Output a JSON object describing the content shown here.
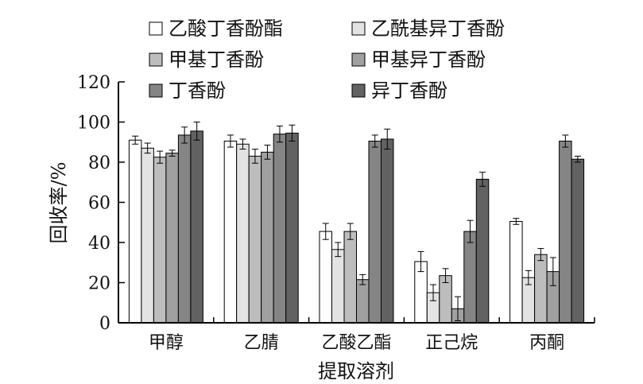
{
  "chart_data": {
    "type": "bar",
    "xlabel": "提取溶剂",
    "ylabel": "回收率/%",
    "ylim": [
      0,
      120
    ],
    "yticks": [
      0,
      20,
      40,
      60,
      80,
      100,
      120
    ],
    "categories": [
      "甲醇",
      "乙腈",
      "乙酸乙酯",
      "正己烷",
      "丙酮"
    ],
    "legend_placement": "top",
    "series": [
      {
        "name": "乙酸丁香酚酯",
        "color": "#ffffff",
        "values": [
          91,
          90.5,
          45.5,
          30.5,
          50.5
        ],
        "errors": [
          2,
          3,
          4,
          5,
          1.5
        ]
      },
      {
        "name": "乙酰基异丁香酚",
        "color": "#e3e3e3",
        "values": [
          87,
          89,
          36.5,
          15,
          22.5
        ],
        "errors": [
          2.5,
          2.5,
          3.5,
          4,
          3.5
        ]
      },
      {
        "name": "甲基丁香酚",
        "color": "#bdbdbd",
        "values": [
          82.5,
          83,
          45.5,
          23.5,
          34
        ],
        "errors": [
          3,
          3.5,
          4,
          3.5,
          3
        ]
      },
      {
        "name": "甲基异丁香酚",
        "color": "#a0a0a0",
        "values": [
          84.5,
          85,
          21.5,
          7,
          25.5
        ],
        "errors": [
          1.5,
          3.5,
          2.5,
          6,
          7
        ]
      },
      {
        "name": "丁香酚",
        "color": "#858585",
        "values": [
          93.5,
          94,
          90.5,
          45.5,
          90.5
        ],
        "errors": [
          4,
          4,
          3,
          5.5,
          3
        ]
      },
      {
        "name": "异丁香酚",
        "color": "#626262",
        "values": [
          95.5,
          94.5,
          91.5,
          71.5,
          81.5
        ],
        "errors": [
          4.5,
          4,
          5,
          3.5,
          1.5
        ]
      }
    ]
  }
}
